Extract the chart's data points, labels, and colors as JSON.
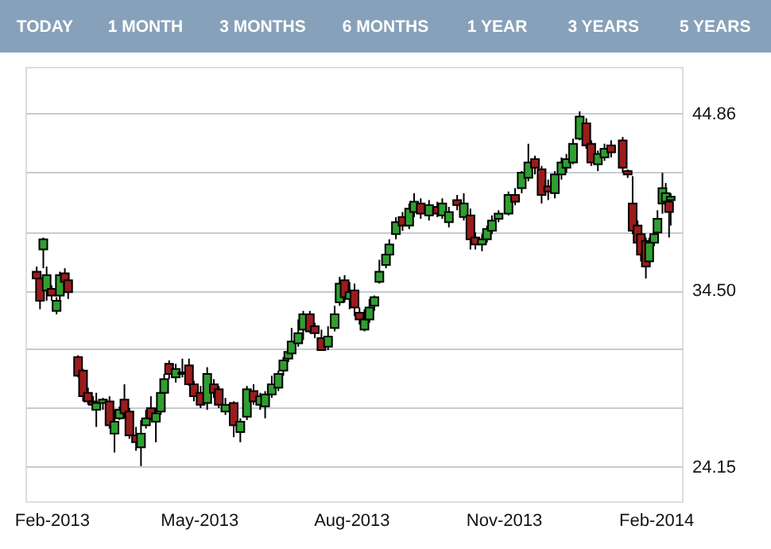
{
  "chart_data": {
    "type": "candlestick",
    "annotations": [
      "TODAY",
      "1 MONTH",
      "3 MONTHS",
      "6 MONTHS",
      "1 YEAR",
      "3 YEARS",
      "5 YEARS"
    ],
    "x": [
      "2013-01-23",
      "2013-01-25",
      "2013-01-27",
      "2013-01-29",
      "2013-02-01",
      "2013-02-04",
      "2013-02-06",
      "2013-02-09",
      "2013-02-11",
      "2013-02-17",
      "2013-02-20",
      "2013-02-23",
      "2013-02-26",
      "2013-02-28",
      "2013-03-04",
      "2013-03-08",
      "2013-03-11",
      "2013-03-14",
      "2013-03-17",
      "2013-03-20",
      "2013-03-24",
      "2013-03-27",
      "2013-03-30",
      "2013-04-02",
      "2013-04-05",
      "2013-04-08",
      "2013-04-10",
      "2013-04-13",
      "2013-04-17",
      "2013-04-21",
      "2013-04-25",
      "2013-04-28",
      "2013-05-02",
      "2013-05-06",
      "2013-05-10",
      "2013-05-13",
      "2013-05-17",
      "2013-05-22",
      "2013-05-26",
      "2013-05-30",
      "2013-06-03",
      "2013-06-07",
      "2013-06-10",
      "2013-06-14",
      "2013-06-18",
      "2013-06-21",
      "2013-06-24",
      "2013-06-26",
      "2013-06-30",
      "2013-07-03",
      "2013-07-07",
      "2013-07-10",
      "2013-07-14",
      "2013-07-18",
      "2013-07-22",
      "2013-07-25",
      "2013-07-28",
      "2013-07-31",
      "2013-08-03",
      "2013-08-06",
      "2013-08-09",
      "2013-08-12",
      "2013-08-15",
      "2013-08-18",
      "2013-08-22",
      "2013-08-24",
      "2013-08-28",
      "2013-09-01",
      "2013-09-05",
      "2013-09-08",
      "2013-09-12",
      "2013-09-17",
      "2013-09-22",
      "2013-09-25",
      "2013-09-29",
      "2013-10-04",
      "2013-10-08",
      "2013-10-12",
      "2013-10-15",
      "2013-10-19",
      "2013-10-22",
      "2013-10-25",
      "2013-10-29",
      "2013-11-04",
      "2013-11-08",
      "2013-11-12",
      "2013-11-16",
      "2013-11-20",
      "2013-11-24",
      "2013-11-28",
      "2013-12-02",
      "2013-12-06",
      "2013-12-09",
      "2013-12-13",
      "2013-12-17",
      "2013-12-21",
      "2013-12-24",
      "2013-12-28",
      "2014-01-01",
      "2014-01-05",
      "2014-01-12",
      "2014-01-15",
      "2014-01-18",
      "2014-01-21",
      "2014-01-23",
      "2014-01-26",
      "2014-01-28",
      "2014-01-31",
      "2014-02-02",
      "2014-02-05",
      "2014-02-07",
      "2014-02-09",
      "2014-02-10"
    ],
    "ohlc": [
      [
        35.6,
        35.9,
        34.9,
        35.2
      ],
      [
        35.2,
        35.4,
        33.4,
        33.9
      ],
      [
        36.9,
        37.6,
        35.8,
        37.5
      ],
      [
        34.5,
        35.9,
        33.9,
        35.4
      ],
      [
        34.6,
        34.8,
        33.9,
        34.2
      ],
      [
        33.3,
        34.1,
        33.1,
        33.9
      ],
      [
        34.2,
        35.6,
        33.9,
        35.4
      ],
      [
        35.5,
        35.8,
        34.8,
        35.0
      ],
      [
        35.1,
        35.3,
        34.0,
        34.4
      ],
      [
        30.6,
        30.7,
        29.4,
        29.5
      ],
      [
        29.8,
        29.9,
        28.0,
        28.3
      ],
      [
        28.5,
        28.8,
        27.8,
        28.0
      ],
      [
        28.0,
        28.3,
        27.6,
        27.8
      ],
      [
        27.5,
        28.5,
        26.5,
        27.9
      ],
      [
        27.9,
        28.2,
        27.5,
        28.1
      ],
      [
        28.0,
        28.3,
        26.4,
        26.6
      ],
      [
        26.1,
        27.5,
        25.0,
        26.8
      ],
      [
        27.0,
        27.7,
        26.9,
        27.5
      ],
      [
        28.1,
        29.0,
        27.0,
        27.3
      ],
      [
        27.4,
        27.6,
        25.8,
        26.0
      ],
      [
        26.0,
        26.5,
        25.1,
        25.6
      ],
      [
        25.3,
        26.9,
        24.2,
        26.1
      ],
      [
        26.6,
        27.5,
        26.4,
        27.0
      ],
      [
        27.6,
        28.3,
        26.9,
        27.0
      ],
      [
        26.8,
        27.6,
        25.6,
        27.3
      ],
      [
        27.4,
        29.1,
        27.2,
        28.5
      ],
      [
        28.5,
        29.6,
        28.4,
        29.3
      ],
      [
        30.2,
        30.4,
        29.3,
        29.6
      ],
      [
        29.4,
        30.2,
        29.1,
        29.9
      ],
      [
        29.7,
        30.5,
        29.4,
        29.6
      ],
      [
        30.1,
        30.5,
        28.9,
        29.0
      ],
      [
        29.0,
        29.2,
        28.0,
        28.3
      ],
      [
        28.5,
        28.9,
        27.6,
        27.8
      ],
      [
        27.9,
        30.0,
        27.5,
        29.6
      ],
      [
        29.0,
        29.3,
        28.2,
        28.5
      ],
      [
        28.7,
        28.9,
        27.6,
        27.8
      ],
      [
        27.4,
        28.2,
        27.2,
        27.8
      ],
      [
        27.9,
        28.0,
        25.9,
        26.6
      ],
      [
        26.2,
        27.0,
        25.6,
        26.8
      ],
      [
        27.1,
        28.9,
        26.9,
        28.7
      ],
      [
        28.6,
        29.0,
        27.8,
        28.0
      ],
      [
        27.8,
        28.5,
        27.5,
        28.3
      ],
      [
        27.7,
        28.6,
        27.0,
        28.4
      ],
      [
        28.4,
        29.5,
        28.2,
        29.0
      ],
      [
        28.8,
        29.8,
        28.6,
        29.6
      ],
      [
        29.8,
        30.6,
        29.5,
        30.4
      ],
      [
        30.5,
        31.0,
        30.3,
        30.9
      ],
      [
        30.8,
        32.3,
        30.6,
        31.5
      ],
      [
        31.4,
        32.8,
        31.2,
        32.0
      ],
      [
        32.2,
        33.3,
        31.6,
        33.1
      ],
      [
        33.1,
        33.3,
        32.0,
        32.1
      ],
      [
        32.4,
        32.6,
        31.7,
        32.0
      ],
      [
        31.7,
        32.2,
        31.0,
        31.0
      ],
      [
        31.2,
        32.4,
        31.0,
        31.8
      ],
      [
        32.3,
        33.6,
        32.1,
        33.1
      ],
      [
        33.8,
        35.3,
        33.6,
        34.9
      ],
      [
        35.1,
        35.4,
        33.8,
        34.1
      ],
      [
        34.0,
        35.0,
        33.4,
        34.4
      ],
      [
        34.5,
        34.9,
        33.0,
        33.5
      ],
      [
        33.2,
        33.5,
        32.5,
        32.8
      ],
      [
        32.2,
        33.4,
        32.1,
        32.8
      ],
      [
        32.8,
        34.0,
        32.6,
        33.5
      ],
      [
        33.6,
        34.2,
        33.3,
        34.1
      ],
      [
        35.0,
        36.3,
        34.9,
        35.6
      ],
      [
        36.0,
        37.0,
        35.8,
        36.6
      ],
      [
        36.6,
        37.5,
        36.4,
        37.2
      ],
      [
        37.8,
        38.8,
        37.5,
        38.5
      ],
      [
        38.8,
        39.1,
        38.0,
        38.3
      ],
      [
        38.3,
        39.6,
        38.1,
        39.3
      ],
      [
        39.1,
        40.2,
        38.8,
        39.7
      ],
      [
        39.6,
        39.9,
        38.7,
        39.0
      ],
      [
        38.9,
        39.8,
        38.6,
        39.5
      ],
      [
        39.4,
        39.7,
        38.8,
        39.0
      ],
      [
        38.9,
        39.9,
        38.7,
        39.6
      ],
      [
        38.5,
        39.4,
        38.2,
        39.1
      ],
      [
        39.8,
        40.1,
        39.2,
        39.5
      ],
      [
        38.8,
        40.2,
        38.6,
        39.6
      ],
      [
        38.9,
        39.3,
        36.9,
        37.5
      ],
      [
        37.6,
        37.9,
        36.9,
        37.2
      ],
      [
        37.2,
        37.8,
        36.8,
        37.5
      ],
      [
        37.5,
        38.3,
        37.3,
        38.1
      ],
      [
        38.0,
        38.9,
        37.8,
        38.6
      ],
      [
        38.7,
        39.2,
        38.5,
        39.0
      ],
      [
        39.0,
        40.3,
        38.9,
        40.1
      ],
      [
        40.1,
        40.5,
        39.5,
        39.7
      ],
      [
        40.5,
        41.5,
        40.2,
        41.4
      ],
      [
        41.1,
        43.1,
        40.9,
        42.0
      ],
      [
        42.2,
        42.4,
        41.3,
        41.7
      ],
      [
        41.6,
        41.8,
        39.6,
        40.1
      ],
      [
        40.6,
        41.0,
        39.8,
        40.3
      ],
      [
        40.2,
        41.5,
        39.9,
        41.3
      ],
      [
        41.3,
        42.3,
        41.0,
        42.0
      ],
      [
        41.7,
        42.5,
        41.4,
        42.2
      ],
      [
        42.0,
        43.4,
        41.9,
        43.1
      ],
      [
        43.4,
        45.0,
        43.3,
        44.7
      ],
      [
        44.3,
        44.6,
        42.8,
        43.0
      ],
      [
        43.1,
        43.3,
        41.8,
        42.0
      ],
      [
        41.9,
        42.7,
        41.5,
        42.5
      ],
      [
        42.3,
        43.1,
        42.1,
        42.8
      ],
      [
        43.0,
        43.3,
        42.3,
        42.6
      ],
      [
        43.3,
        43.5,
        41.4,
        41.7
      ],
      [
        41.5,
        41.6,
        41.1,
        41.3
      ],
      [
        39.6,
        41.2,
        37.8,
        38.0
      ],
      [
        38.3,
        38.6,
        37.0,
        37.3
      ],
      [
        37.8,
        38.0,
        36.2,
        36.6
      ],
      [
        37.4,
        37.6,
        35.2,
        35.9
      ],
      [
        36.2,
        37.6,
        36.0,
        37.3
      ],
      [
        37.3,
        38.1,
        37.1,
        37.8
      ],
      [
        37.9,
        39.2,
        37.7,
        38.7
      ],
      [
        39.6,
        41.4,
        39.0,
        40.5
      ],
      [
        39.7,
        40.8,
        39.2,
        40.2
      ],
      [
        39.7,
        40.1,
        37.6,
        39.1
      ],
      [
        39.8,
        40.2,
        38.3,
        40.0
      ]
    ],
    "colors": [
      "#9b1c1c",
      "#9b1c1c",
      "#2f9f2f",
      "#2f9f2f",
      "#9b1c1c",
      "#2f9f2f",
      "#2f9f2f",
      "#9b1c1c",
      "#9b1c1c",
      "#9b1c1c",
      "#9b1c1c",
      "#9b1c1c",
      "#9b1c1c",
      "#2f9f2f",
      "#2f9f2f",
      "#9b1c1c",
      "#2f9f2f",
      "#2f9f2f",
      "#9b1c1c",
      "#9b1c1c",
      "#9b1c1c",
      "#2f9f2f",
      "#2f9f2f",
      "#9b1c1c",
      "#2f9f2f",
      "#2f9f2f",
      "#2f9f2f",
      "#9b1c1c",
      "#2f9f2f",
      "#9b1c1c",
      "#9b1c1c",
      "#9b1c1c",
      "#9b1c1c",
      "#2f9f2f",
      "#9b1c1c",
      "#9b1c1c",
      "#2f9f2f",
      "#9b1c1c",
      "#2f9f2f",
      "#2f9f2f",
      "#9b1c1c",
      "#2f9f2f",
      "#2f9f2f",
      "#2f9f2f",
      "#2f9f2f",
      "#2f9f2f",
      "#2f9f2f",
      "#2f9f2f",
      "#2f9f2f",
      "#2f9f2f",
      "#9b1c1c",
      "#9b1c1c",
      "#9b1c1c",
      "#2f9f2f",
      "#2f9f2f",
      "#2f9f2f",
      "#9b1c1c",
      "#2f9f2f",
      "#9b1c1c",
      "#9b1c1c",
      "#2f9f2f",
      "#2f9f2f",
      "#2f9f2f",
      "#2f9f2f",
      "#2f9f2f",
      "#2f9f2f",
      "#2f9f2f",
      "#9b1c1c",
      "#2f9f2f",
      "#2f9f2f",
      "#9b1c1c",
      "#2f9f2f",
      "#9b1c1c",
      "#2f9f2f",
      "#2f9f2f",
      "#9b1c1c",
      "#2f9f2f",
      "#9b1c1c",
      "#9b1c1c",
      "#2f9f2f",
      "#2f9f2f",
      "#2f9f2f",
      "#2f9f2f",
      "#2f9f2f",
      "#9b1c1c",
      "#2f9f2f",
      "#2f9f2f",
      "#9b1c1c",
      "#9b1c1c",
      "#9b1c1c",
      "#2f9f2f",
      "#2f9f2f",
      "#2f9f2f",
      "#2f9f2f",
      "#2f9f2f",
      "#9b1c1c",
      "#9b1c1c",
      "#2f9f2f",
      "#2f9f2f",
      "#9b1c1c",
      "#9b1c1c",
      "#9b1c1c",
      "#9b1c1c",
      "#9b1c1c",
      "#9b1c1c",
      "#9b1c1c",
      "#2f9f2f",
      "#2f9f2f",
      "#2f9f2f",
      "#2f9f2f",
      "#2f9f2f",
      "#9b1c1c",
      "#2f9f2f"
    ],
    "ylim": [
      22.14,
      47.61
    ],
    "yticks": [
      {
        "value": 24.15,
        "label": "24.15"
      },
      {
        "value": 27.6,
        "label": null
      },
      {
        "value": 31.05,
        "label": null
      },
      {
        "value": 34.5,
        "label": "34.50"
      },
      {
        "value": 37.95,
        "label": null
      },
      {
        "value": 41.41,
        "label": null
      },
      {
        "value": 44.86,
        "label": "44.86"
      }
    ],
    "xlim": [
      "2013-01-21",
      "2014-02-12"
    ],
    "xticks": [
      {
        "value": "2013-02-01",
        "label": "Feb-2013"
      },
      {
        "value": "2013-05-01",
        "label": "May-2013"
      },
      {
        "value": "2013-08-01",
        "label": "Aug-2013"
      },
      {
        "value": "2013-11-01",
        "label": "Nov-2013"
      },
      {
        "value": "2014-02-01",
        "label": "Feb-2014"
      }
    ],
    "grid": "y"
  }
}
